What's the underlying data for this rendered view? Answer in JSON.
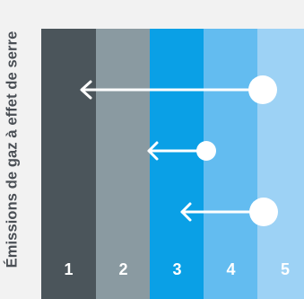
{
  "y_axis_label": "Émissions de gaz à effet de serre",
  "bands": [
    {
      "label": "1",
      "color": "#4b555b"
    },
    {
      "label": "2",
      "color": "#8a9aa1"
    },
    {
      "label": "3",
      "color": "#0aa0e6"
    },
    {
      "label": "4",
      "color": "#63bcf0"
    },
    {
      "label": "5",
      "color": "#9dd2f5"
    }
  ],
  "arrow_color": "#ffffff",
  "arrows": [
    {
      "from_band": 5,
      "to_band": 1,
      "dot_size": "large"
    },
    {
      "from_band": 4,
      "to_band": 3,
      "dot_size": "small"
    },
    {
      "from_band": 5,
      "to_band": 4,
      "dot_size": "large"
    }
  ]
}
